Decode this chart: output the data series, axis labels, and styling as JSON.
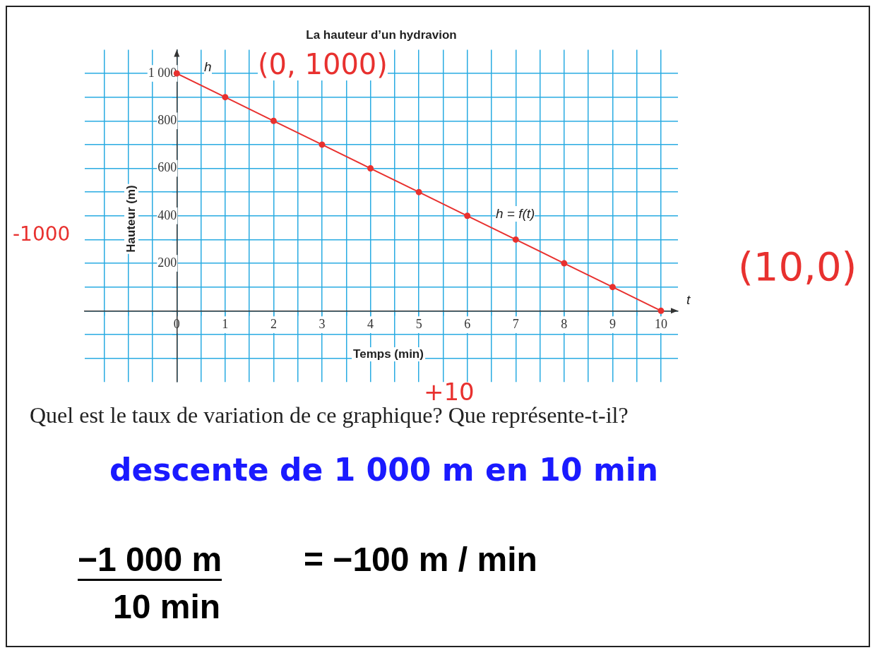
{
  "chart_data": {
    "type": "line",
    "title": "La hauteur d’un hydravion",
    "xlabel": "Temps (min)",
    "ylabel": "Hauteur (m)",
    "x": [
      0,
      1,
      2,
      3,
      4,
      5,
      6,
      7,
      8,
      9,
      10
    ],
    "series": [
      {
        "color": "#e8312f",
        "values": [
          1000,
          900,
          800,
          700,
          600,
          500,
          400,
          300,
          200,
          100,
          0
        ]
      }
    ],
    "marker": "circle",
    "line_style": "solid",
    "grid": true,
    "legend": false,
    "xlim": [
      -1.9,
      10.35
    ],
    "ylim": [
      -300,
      1100
    ],
    "xticks": [
      {
        "value": -1.5,
        "label": null
      },
      {
        "value": -1,
        "label": null
      },
      {
        "value": -0.5,
        "label": null
      },
      0,
      {
        "value": 0.5,
        "label": null
      },
      1,
      {
        "value": 1.5,
        "label": null
      },
      2,
      {
        "value": 2.5,
        "label": null
      },
      3,
      {
        "value": 3.5,
        "label": null
      },
      4,
      {
        "value": 4.5,
        "label": null
      },
      5,
      {
        "value": 5.5,
        "label": null
      },
      6,
      {
        "value": 6.5,
        "label": null
      },
      7,
      {
        "value": 7.5,
        "label": null
      },
      8,
      {
        "value": 8.5,
        "label": null
      },
      9,
      {
        "value": 9.5,
        "label": null
      },
      10
    ],
    "yticks": [
      {
        "value": -200,
        "label": null
      },
      {
        "value": -100,
        "label": null
      },
      {
        "value": 0,
        "label": null
      },
      {
        "value": 100,
        "label": null
      },
      200,
      {
        "value": 300,
        "label": null
      },
      400,
      {
        "value": 500,
        "label": null
      },
      600,
      {
        "value": 700,
        "label": null
      },
      800,
      {
        "value": 900,
        "label": null
      },
      {
        "value": 1000,
        "label": "1 000"
      }
    ],
    "annotations": [
      "(0, 1000)",
      "-1000",
      "(10,0)",
      "+10",
      "Quel est le taux de variation de ce graphique? Que représente-t-il?",
      "descente de 1 000 m en 10 min",
      "−1 000 m",
      "10  min",
      "= −100 m / min",
      "h = f(t)",
      "h",
      "t"
    ]
  }
}
